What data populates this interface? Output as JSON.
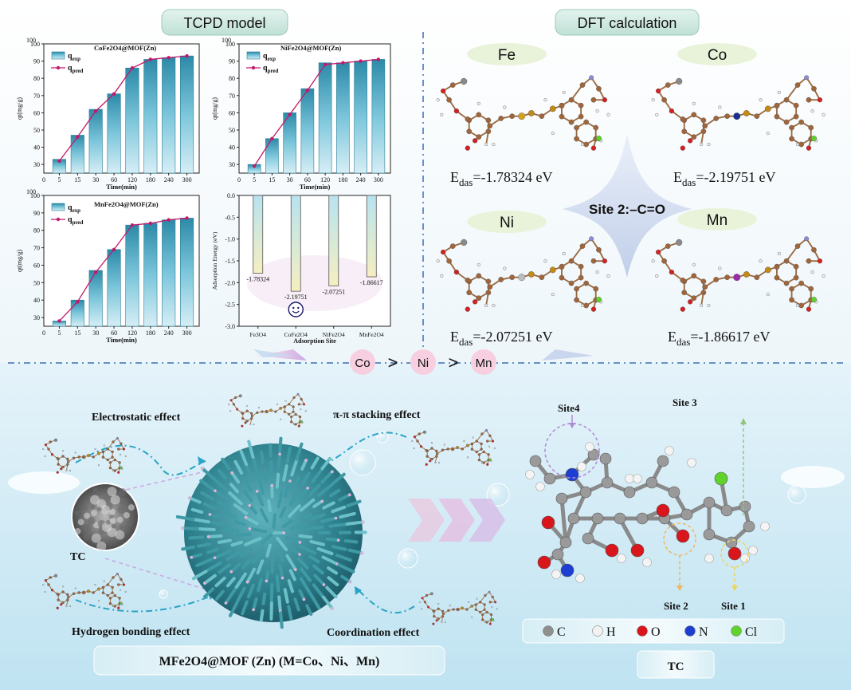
{
  "top": {
    "tcpd_title": "TCPD model",
    "dft_title": "DFT calculation"
  },
  "legend_common": {
    "exp": "q",
    "exp_sub": "exp",
    "pred": "q",
    "pred_sub": "pred",
    "xlabel": "Time(min)",
    "ylabel": "qt(mg/g)"
  },
  "chart_data": [
    {
      "type": "bar",
      "title": "CoFe2O4@MOF(Zn)",
      "categories": [
        "5",
        "15",
        "30",
        "60",
        "120",
        "180",
        "240",
        "300"
      ],
      "series": [
        {
          "name": "qexp",
          "values": [
            33,
            47,
            62,
            71,
            86,
            91,
            92,
            93
          ]
        },
        {
          "name": "qpred",
          "values": [
            32,
            46,
            61,
            71,
            86,
            91,
            92,
            93
          ]
        }
      ],
      "xlabel": "Time(min)",
      "ylabel": "qt(mg/g)",
      "ylim": [
        25,
        100
      ],
      "yticks": [
        30,
        40,
        50,
        60,
        70,
        80,
        90,
        100
      ]
    },
    {
      "type": "bar",
      "title": "NiFe2O4@MOF(Zn)",
      "categories": [
        "5",
        "15",
        "30",
        "60",
        "120",
        "180",
        "240",
        "300"
      ],
      "series": [
        {
          "name": "qexp",
          "values": [
            30,
            45,
            60,
            74,
            89,
            89,
            90,
            91
          ]
        },
        {
          "name": "qpred",
          "values": [
            29,
            45,
            59,
            73,
            88,
            89,
            90,
            91
          ]
        }
      ],
      "xlabel": "Time(min)",
      "ylabel": "qt(mg/g)",
      "ylim": [
        25,
        100
      ],
      "yticks": [
        30,
        40,
        50,
        60,
        70,
        80,
        90,
        100
      ]
    },
    {
      "type": "bar",
      "title": "MnFe2O4@MOF(Zn)",
      "categories": [
        "5",
        "15",
        "30",
        "60",
        "120",
        "180",
        "240",
        "300"
      ],
      "series": [
        {
          "name": "qexp",
          "values": [
            28,
            40,
            57,
            69,
            83,
            84,
            86,
            87
          ]
        },
        {
          "name": "qpred",
          "values": [
            28,
            39,
            56,
            69,
            83,
            84,
            86,
            87
          ]
        }
      ],
      "xlabel": "Time(min)",
      "ylabel": "qt(mg/g)",
      "ylim": [
        25,
        100
      ],
      "yticks": [
        30,
        40,
        50,
        60,
        70,
        80,
        90,
        100
      ]
    },
    {
      "type": "bar",
      "title": "",
      "categories": [
        "Fe3O4",
        "CoFe2O4",
        "NiFe2O4",
        "MnFe2O4"
      ],
      "values": [
        -1.78324,
        -2.19751,
        -2.07251,
        -1.86617
      ],
      "labels": [
        "-1.78324",
        "-2.19751",
        "-2.07251",
        "-1.86617"
      ],
      "xlabel": "Adsorption Site",
      "ylabel": "Adsorption Energy (eV)",
      "ylim": [
        -3.0,
        0.0
      ],
      "yticks": [
        0.0,
        -0.5,
        -1.0,
        -1.5,
        -2.0,
        -2.5,
        -3.0
      ],
      "ytick_labels": [
        "0.0",
        "-0.5",
        "-1.0",
        "-1.5",
        "-2.0",
        "-2.5",
        "-3.0"
      ]
    }
  ],
  "dft": {
    "metals": [
      "Fe",
      "Co",
      "Ni",
      "Mn"
    ],
    "energies": [
      "=-1.78324 eV",
      "=-2.19751 eV",
      "=-2.07251 eV",
      "=-1.86617 eV"
    ],
    "e_label": "E",
    "e_sub": "das",
    "site_label": "Site 2:–C=O",
    "order": [
      "Co",
      "Ni",
      "Mn"
    ],
    "gt": ">"
  },
  "bottom": {
    "electrostatic": "Electrostatic effect",
    "pipi": "π-π stacking effect",
    "hbond": "Hydrogen bonding effect",
    "coord": "Coordination effect",
    "tc_small": "TC",
    "composite": "MFe2O4@MOF (Zn) (M=Co、Ni、Mn)",
    "site1": "Site 1",
    "site2": "Site 2",
    "site3": "Site 3",
    "site4": "Site4",
    "tc_label": "TC",
    "atoms": [
      "C",
      "H",
      "O",
      "N",
      "Cl"
    ],
    "atom_colors": [
      "#8f8f8f",
      "#f2f2f2",
      "#d8161b",
      "#1d3fd1",
      "#5fd32c"
    ]
  },
  "colors": {
    "bar": "#3e9fba",
    "line": "#c2186b",
    "energy_bar_top": "#b7e3f0",
    "energy_bar_bottom": "#f6efc0",
    "carbon": "#a0653a",
    "oxygen": "#d42020",
    "badge": "#f7cfe0"
  }
}
